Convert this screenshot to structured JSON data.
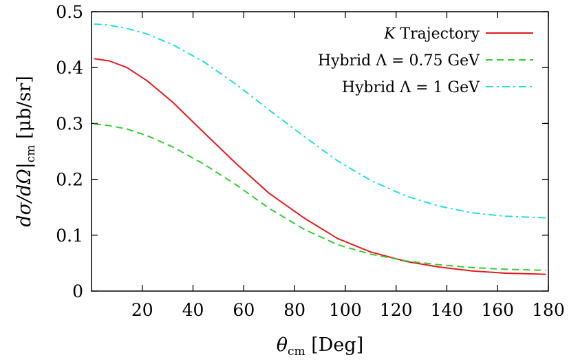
{
  "chart_data": {
    "type": "line",
    "xlabel": "θcm [Deg]",
    "xlabel_parts": {
      "main": "θ",
      "sub": "cm",
      "rest": " [Deg]"
    },
    "ylabel": "dσ/dΩ|cm [μb/sr]",
    "ylabel_parts": {
      "main": "dσ/dΩ|",
      "sub": "cm",
      "rest": " [μb/sr]"
    },
    "xlim": [
      0,
      180
    ],
    "ylim": [
      0,
      0.5
    ],
    "xticks": [
      20,
      40,
      60,
      80,
      100,
      120,
      140,
      160,
      180
    ],
    "xtick_labels": [
      "20",
      "40",
      "60",
      "80",
      "100",
      "120",
      "140",
      "160",
      "180"
    ],
    "yticks": [
      0,
      0.1,
      0.2,
      0.3,
      0.4,
      0.5
    ],
    "ytick_labels": [
      "0",
      "0.1",
      "0.2",
      "0.3",
      "0.4",
      "0.5"
    ],
    "grid": false,
    "legend_position": "top-right",
    "series": [
      {
        "name": "K Trajectory",
        "name_parts": {
          "italic": "K",
          "rest": " Trajectory"
        },
        "color": "#e31a1c",
        "dash": "solid",
        "x": [
          1,
          7,
          14,
          22,
          32,
          44,
          57,
          70,
          84,
          97,
          110,
          124,
          137,
          150,
          163,
          179
        ],
        "y": [
          0.416,
          0.412,
          0.4,
          0.376,
          0.338,
          0.285,
          0.228,
          0.175,
          0.13,
          0.094,
          0.07,
          0.053,
          0.043,
          0.036,
          0.032,
          0.03
        ]
      },
      {
        "name": "Hybrid Λ = 0.75 GeV",
        "color": "#33cc33",
        "dash": "dashed",
        "x": [
          1,
          7,
          14,
          22,
          32,
          44,
          57,
          70,
          84,
          97,
          110,
          124,
          137,
          150,
          163,
          179
        ],
        "y": [
          0.299,
          0.296,
          0.29,
          0.278,
          0.258,
          0.228,
          0.19,
          0.148,
          0.11,
          0.083,
          0.066,
          0.054,
          0.047,
          0.042,
          0.039,
          0.037
        ]
      },
      {
        "name": "Hybrid Λ = 1 GeV",
        "color": "#22dddd",
        "dash": "dash-dot",
        "x": [
          1,
          7,
          14,
          22,
          32,
          44,
          57,
          70,
          84,
          97,
          110,
          124,
          137,
          150,
          163,
          179
        ],
        "y": [
          0.478,
          0.476,
          0.47,
          0.46,
          0.441,
          0.411,
          0.37,
          0.324,
          0.276,
          0.233,
          0.198,
          0.17,
          0.152,
          0.14,
          0.134,
          0.131
        ]
      }
    ]
  }
}
